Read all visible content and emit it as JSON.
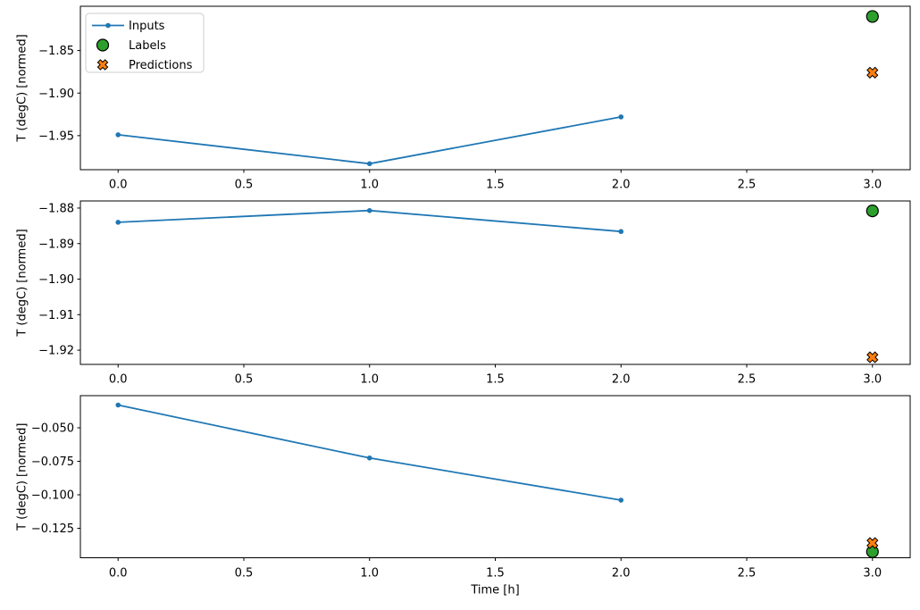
{
  "figure": {
    "background": "#ffffff"
  },
  "colors": {
    "inputs": "#1f77b4",
    "labels": "#2ca02c",
    "predictions": "#ff7f0e",
    "axis": "#000000",
    "legend_border": "#cccccc",
    "legend_background": "#ffffff"
  },
  "legend": {
    "items": [
      {
        "label": "Inputs",
        "marker": "line-dot",
        "color_key": "inputs"
      },
      {
        "label": "Labels",
        "marker": "circle",
        "color_key": "labels"
      },
      {
        "label": "Predictions",
        "marker": "x",
        "color_key": "predictions"
      }
    ]
  },
  "xlabel": "Time [h]",
  "chart_data": [
    {
      "type": "line",
      "ylabel": "T (degC) [normed]",
      "xlabel": "",
      "xlim": [
        -0.15,
        3.15
      ],
      "ylim": [
        -1.99,
        -1.798
      ],
      "xtick_values": [
        0,
        0.5,
        1,
        1.5,
        2,
        2.5,
        3
      ],
      "xtick_labels": [
        "0.0",
        "0.5",
        "1.0",
        "1.5",
        "2.0",
        "2.5",
        "3.0"
      ],
      "ytick_values": [
        -1.85,
        -1.9,
        -1.95
      ],
      "ytick_labels": [
        "−1.85",
        "−1.90",
        "−1.95"
      ],
      "show_legend": true,
      "series": [
        {
          "name": "Inputs",
          "kind": "line",
          "color_key": "inputs",
          "x": [
            0,
            1,
            2
          ],
          "y": [
            -1.949,
            -1.983,
            -1.928
          ]
        },
        {
          "name": "Labels",
          "kind": "circle",
          "color_key": "labels",
          "x": [
            3
          ],
          "y": [
            -1.81
          ]
        },
        {
          "name": "Predictions",
          "kind": "x",
          "color_key": "predictions",
          "x": [
            3
          ],
          "y": [
            -1.876
          ]
        }
      ]
    },
    {
      "type": "line",
      "ylabel": "T (degC) [normed]",
      "xlabel": "",
      "xlim": [
        -0.15,
        3.15
      ],
      "ylim": [
        -1.924,
        -1.878
      ],
      "xtick_values": [
        0,
        0.5,
        1,
        1.5,
        2,
        2.5,
        3
      ],
      "xtick_labels": [
        "0.0",
        "0.5",
        "1.0",
        "1.5",
        "2.0",
        "2.5",
        "3.0"
      ],
      "ytick_values": [
        -1.88,
        -1.89,
        -1.9,
        -1.91,
        -1.92
      ],
      "ytick_labels": [
        "−1.88",
        "−1.89",
        "−1.90",
        "−1.91",
        "−1.92"
      ],
      "show_legend": false,
      "series": [
        {
          "name": "Inputs",
          "kind": "line",
          "color_key": "inputs",
          "x": [
            0,
            1,
            2
          ],
          "y": [
            -1.884,
            -1.8807,
            -1.8866
          ]
        },
        {
          "name": "Labels",
          "kind": "circle",
          "color_key": "labels",
          "x": [
            3
          ],
          "y": [
            -1.8808
          ]
        },
        {
          "name": "Predictions",
          "kind": "x",
          "color_key": "predictions",
          "x": [
            3
          ],
          "y": [
            -1.922
          ]
        }
      ]
    },
    {
      "type": "line",
      "ylabel": "T (degC) [normed]",
      "xlabel": "Time [h]",
      "xlim": [
        -0.15,
        3.15
      ],
      "ylim": [
        -0.147,
        -0.026
      ],
      "xtick_values": [
        0,
        0.5,
        1,
        1.5,
        2,
        2.5,
        3
      ],
      "xtick_labels": [
        "0.0",
        "0.5",
        "1.0",
        "1.5",
        "2.0",
        "2.5",
        "3.0"
      ],
      "ytick_values": [
        -0.05,
        -0.075,
        -0.1,
        -0.125
      ],
      "ytick_labels": [
        "−0.050",
        "−0.075",
        "−0.100",
        "−0.125"
      ],
      "show_legend": false,
      "series": [
        {
          "name": "Inputs",
          "kind": "line",
          "color_key": "inputs",
          "x": [
            0,
            1,
            2
          ],
          "y": [
            -0.033,
            -0.0725,
            -0.104
          ]
        },
        {
          "name": "Labels",
          "kind": "circle",
          "color_key": "labels",
          "x": [
            3
          ],
          "y": [
            -0.1425
          ]
        },
        {
          "name": "Predictions",
          "kind": "x",
          "color_key": "predictions",
          "x": [
            3
          ],
          "y": [
            -0.136
          ]
        }
      ]
    }
  ]
}
